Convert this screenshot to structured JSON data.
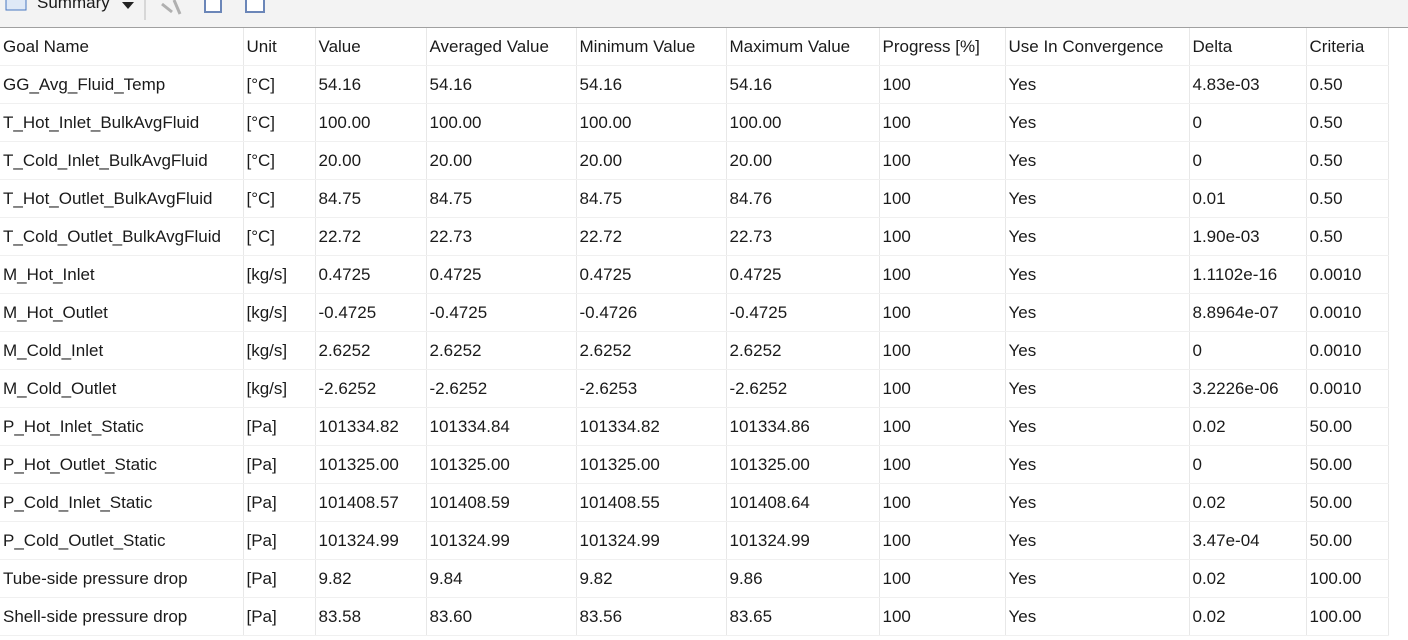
{
  "toolbar": {
    "view": "Summary"
  },
  "table": {
    "columns": [
      "Goal Name",
      "Unit",
      "Value",
      "Averaged Value",
      "Minimum Value",
      "Maximum Value",
      "Progress [%]",
      "Use In Convergence",
      "Delta",
      "Criteria"
    ],
    "rows": [
      [
        "GG_Avg_Fluid_Temp",
        "[°C]",
        "54.16",
        "54.16",
        "54.16",
        "54.16",
        "100",
        "Yes",
        "4.83e-03",
        "0.50"
      ],
      [
        "T_Hot_Inlet_BulkAvgFluid",
        "[°C]",
        "100.00",
        "100.00",
        "100.00",
        "100.00",
        "100",
        "Yes",
        "0",
        "0.50"
      ],
      [
        "T_Cold_Inlet_BulkAvgFluid",
        "[°C]",
        "20.00",
        "20.00",
        "20.00",
        "20.00",
        "100",
        "Yes",
        "0",
        "0.50"
      ],
      [
        "T_Hot_Outlet_BulkAvgFluid",
        "[°C]",
        "84.75",
        "84.75",
        "84.75",
        "84.76",
        "100",
        "Yes",
        "0.01",
        "0.50"
      ],
      [
        "T_Cold_Outlet_BulkAvgFluid",
        "[°C]",
        "22.72",
        "22.73",
        "22.72",
        "22.73",
        "100",
        "Yes",
        "1.90e-03",
        "0.50"
      ],
      [
        "M_Hot_Inlet",
        "[kg/s]",
        "0.4725",
        "0.4725",
        "0.4725",
        "0.4725",
        "100",
        "Yes",
        "1.1102e-16",
        "0.0010"
      ],
      [
        "M_Hot_Outlet",
        "[kg/s]",
        "-0.4725",
        "-0.4725",
        "-0.4726",
        "-0.4725",
        "100",
        "Yes",
        "8.8964e-07",
        "0.0010"
      ],
      [
        "M_Cold_Inlet",
        "[kg/s]",
        "2.6252",
        "2.6252",
        "2.6252",
        "2.6252",
        "100",
        "Yes",
        "0",
        "0.0010"
      ],
      [
        "M_Cold_Outlet",
        "[kg/s]",
        "-2.6252",
        "-2.6252",
        "-2.6253",
        "-2.6252",
        "100",
        "Yes",
        "3.2226e-06",
        "0.0010"
      ],
      [
        "P_Hot_Inlet_Static",
        "[Pa]",
        "101334.82",
        "101334.84",
        "101334.82",
        "101334.86",
        "100",
        "Yes",
        "0.02",
        "50.00"
      ],
      [
        "P_Hot_Outlet_Static",
        "[Pa]",
        "101325.00",
        "101325.00",
        "101325.00",
        "101325.00",
        "100",
        "Yes",
        "0",
        "50.00"
      ],
      [
        "P_Cold_Inlet_Static",
        "[Pa]",
        "101408.57",
        "101408.59",
        "101408.55",
        "101408.64",
        "100",
        "Yes",
        "0.02",
        "50.00"
      ],
      [
        "P_Cold_Outlet_Static",
        "[Pa]",
        "101324.99",
        "101324.99",
        "101324.99",
        "101324.99",
        "100",
        "Yes",
        "3.47e-04",
        "50.00"
      ],
      [
        "Tube-side pressure drop",
        "[Pa]",
        "9.82",
        "9.84",
        "9.82",
        "9.86",
        "100",
        "Yes",
        "0.02",
        "100.00"
      ],
      [
        "Shell-side pressure drop",
        "[Pa]",
        "83.58",
        "83.60",
        "83.56",
        "83.65",
        "100",
        "Yes",
        "0.02",
        "100.00"
      ]
    ]
  }
}
